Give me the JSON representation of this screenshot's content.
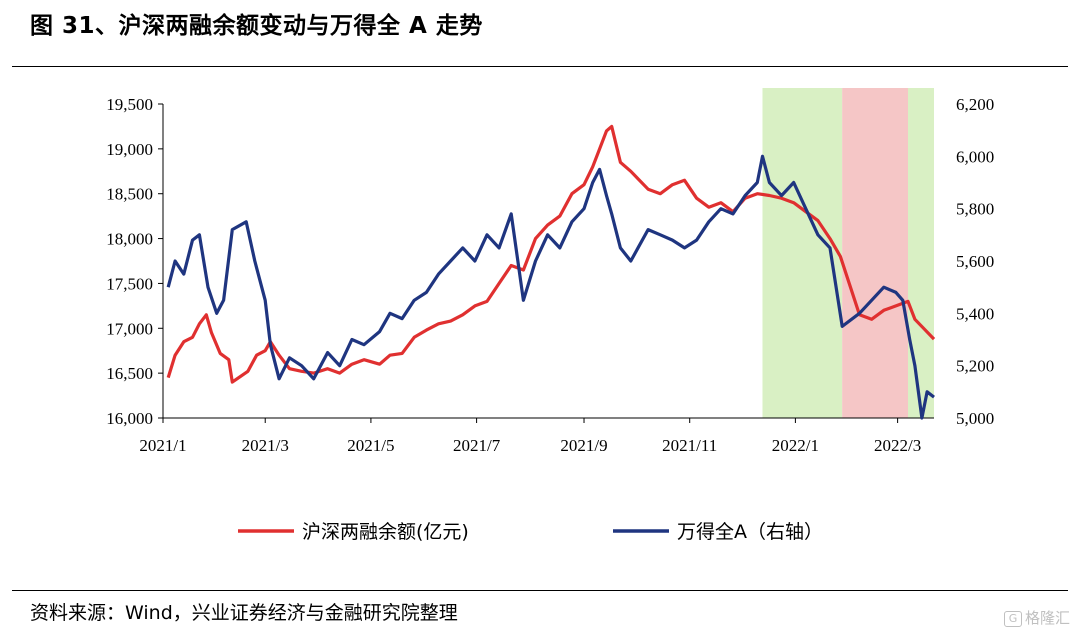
{
  "title": "图 31、沪深两融余额变动与万得全 A 走势",
  "source": "资料来源：Wind，兴业证券经济与金融研究院整理",
  "watermark": "格隆汇",
  "chart_data": {
    "type": "line",
    "title": "",
    "xlabel": "",
    "ylabel": "",
    "x_ticks": [
      "2021/1",
      "2021/3",
      "2021/5",
      "2021/7",
      "2021/9",
      "2021/11",
      "2022/1",
      "2022/3"
    ],
    "left_axis": {
      "ylim": [
        16000,
        19500
      ],
      "ticks": [
        "16,000",
        "16,500",
        "17,000",
        "17,500",
        "18,000",
        "18,500",
        "19,000",
        "19,500"
      ]
    },
    "right_axis": {
      "ylim": [
        5000,
        6200
      ],
      "ticks": [
        "5,000",
        "5,200",
        "5,400",
        "5,600",
        "5,800",
        "6,000",
        "6,200"
      ]
    },
    "grid": false,
    "legend_position": "bottom",
    "colors": {
      "margin": "#e03030",
      "index": "#1f3580",
      "green_band": "#d9f0c4",
      "red_band": "#f5c6c6"
    },
    "shaded_periods": [
      {
        "from": "2021/12/13",
        "to": "2022/1/28",
        "color": "green"
      },
      {
        "from": "2022/1/28",
        "to": "2022/3/7",
        "color": "red"
      },
      {
        "from": "2022/3/7",
        "to": "2022/3/22",
        "color": "green"
      }
    ],
    "series": [
      {
        "name": "沪深两融余额(亿元)",
        "axis": "left",
        "points": [
          [
            "2021/1/4",
            16450
          ],
          [
            "2021/1/8",
            16700
          ],
          [
            "2021/1/13",
            16850
          ],
          [
            "2021/1/18",
            16900
          ],
          [
            "2021/1/22",
            17050
          ],
          [
            "2021/1/26",
            17150
          ],
          [
            "2021/1/29",
            16950
          ],
          [
            "2021/2/3",
            16720
          ],
          [
            "2021/2/8",
            16650
          ],
          [
            "2021/2/10",
            16400
          ],
          [
            "2021/2/19",
            16520
          ],
          [
            "2021/2/24",
            16700
          ],
          [
            "2021/3/1",
            16750
          ],
          [
            "2021/3/4",
            16850
          ],
          [
            "2021/3/9",
            16700
          ],
          [
            "2021/3/15",
            16550
          ],
          [
            "2021/3/22",
            16520
          ],
          [
            "2021/3/29",
            16500
          ],
          [
            "2021/4/6",
            16550
          ],
          [
            "2021/4/13",
            16500
          ],
          [
            "2021/4/20",
            16600
          ],
          [
            "2021/4/27",
            16650
          ],
          [
            "2021/5/6",
            16600
          ],
          [
            "2021/5/12",
            16700
          ],
          [
            "2021/5/19",
            16720
          ],
          [
            "2021/5/26",
            16900
          ],
          [
            "2021/6/2",
            16980
          ],
          [
            "2021/6/9",
            17050
          ],
          [
            "2021/6/16",
            17080
          ],
          [
            "2021/6/23",
            17150
          ],
          [
            "2021/6/30",
            17250
          ],
          [
            "2021/7/7",
            17300
          ],
          [
            "2021/7/14",
            17500
          ],
          [
            "2021/7/21",
            17700
          ],
          [
            "2021/7/28",
            17650
          ],
          [
            "2021/8/4",
            18000
          ],
          [
            "2021/8/11",
            18150
          ],
          [
            "2021/8/18",
            18250
          ],
          [
            "2021/8/25",
            18500
          ],
          [
            "2021/9/1",
            18600
          ],
          [
            "2021/9/6",
            18800
          ],
          [
            "2021/9/10",
            19000
          ],
          [
            "2021/9/14",
            19200
          ],
          [
            "2021/9/17",
            19250
          ],
          [
            "2021/9/22",
            18850
          ],
          [
            "2021/9/28",
            18750
          ],
          [
            "2021/10/8",
            18550
          ],
          [
            "2021/10/15",
            18500
          ],
          [
            "2021/10/22",
            18600
          ],
          [
            "2021/10/29",
            18650
          ],
          [
            "2021/11/5",
            18450
          ],
          [
            "2021/11/12",
            18350
          ],
          [
            "2021/11/19",
            18400
          ],
          [
            "2021/11/26",
            18300
          ],
          [
            "2021/12/3",
            18450
          ],
          [
            "2021/12/10",
            18500
          ],
          [
            "2021/12/17",
            18480
          ],
          [
            "2021/12/24",
            18450
          ],
          [
            "2021/12/31",
            18400
          ],
          [
            "2022/1/7",
            18300
          ],
          [
            "2022/1/14",
            18200
          ],
          [
            "2022/1/21",
            18000
          ],
          [
            "2022/1/27",
            17800
          ],
          [
            "2022/2/7",
            17150
          ],
          [
            "2022/2/14",
            17100
          ],
          [
            "2022/2/21",
            17200
          ],
          [
            "2022/2/28",
            17250
          ],
          [
            "2022/3/7",
            17300
          ],
          [
            "2022/3/11",
            17100
          ],
          [
            "2022/3/16",
            17000
          ],
          [
            "2022/3/22",
            16880
          ]
        ]
      },
      {
        "name": "万得全A（右轴）",
        "axis": "right",
        "points": [
          [
            "2021/1/4",
            5500
          ],
          [
            "2021/1/8",
            5600
          ],
          [
            "2021/1/13",
            5550
          ],
          [
            "2021/1/18",
            5680
          ],
          [
            "2021/1/22",
            5700
          ],
          [
            "2021/1/27",
            5500
          ],
          [
            "2021/2/1",
            5400
          ],
          [
            "2021/2/5",
            5450
          ],
          [
            "2021/2/10",
            5720
          ],
          [
            "2021/2/18",
            5750
          ],
          [
            "2021/2/23",
            5600
          ],
          [
            "2021/3/1",
            5450
          ],
          [
            "2021/3/4",
            5280
          ],
          [
            "2021/3/9",
            5150
          ],
          [
            "2021/3/15",
            5230
          ],
          [
            "2021/3/22",
            5200
          ],
          [
            "2021/3/29",
            5150
          ],
          [
            "2021/4/6",
            5250
          ],
          [
            "2021/4/13",
            5200
          ],
          [
            "2021/4/20",
            5300
          ],
          [
            "2021/4/27",
            5280
          ],
          [
            "2021/5/6",
            5330
          ],
          [
            "2021/5/12",
            5400
          ],
          [
            "2021/5/19",
            5380
          ],
          [
            "2021/5/26",
            5450
          ],
          [
            "2021/6/2",
            5480
          ],
          [
            "2021/6/9",
            5550
          ],
          [
            "2021/6/16",
            5600
          ],
          [
            "2021/6/23",
            5650
          ],
          [
            "2021/6/30",
            5600
          ],
          [
            "2021/7/7",
            5700
          ],
          [
            "2021/7/14",
            5650
          ],
          [
            "2021/7/21",
            5780
          ],
          [
            "2021/7/28",
            5450
          ],
          [
            "2021/8/4",
            5600
          ],
          [
            "2021/8/11",
            5700
          ],
          [
            "2021/8/18",
            5650
          ],
          [
            "2021/8/25",
            5750
          ],
          [
            "2021/9/1",
            5800
          ],
          [
            "2021/9/6",
            5900
          ],
          [
            "2021/9/10",
            5950
          ],
          [
            "2021/9/14",
            5850
          ],
          [
            "2021/9/17",
            5780
          ],
          [
            "2021/9/22",
            5650
          ],
          [
            "2021/9/28",
            5600
          ],
          [
            "2021/10/8",
            5720
          ],
          [
            "2021/10/15",
            5700
          ],
          [
            "2021/10/22",
            5680
          ],
          [
            "2021/10/29",
            5650
          ],
          [
            "2021/11/5",
            5680
          ],
          [
            "2021/11/12",
            5750
          ],
          [
            "2021/11/19",
            5800
          ],
          [
            "2021/11/26",
            5780
          ],
          [
            "2021/12/3",
            5850
          ],
          [
            "2021/12/10",
            5900
          ],
          [
            "2021/12/13",
            6000
          ],
          [
            "2021/12/17",
            5900
          ],
          [
            "2021/12/24",
            5850
          ],
          [
            "2021/12/31",
            5900
          ],
          [
            "2022/1/7",
            5800
          ],
          [
            "2022/1/14",
            5700
          ],
          [
            "2022/1/21",
            5650
          ],
          [
            "2022/1/28",
            5350
          ],
          [
            "2022/2/7",
            5400
          ],
          [
            "2022/2/14",
            5450
          ],
          [
            "2022/2/21",
            5500
          ],
          [
            "2022/2/28",
            5480
          ],
          [
            "2022/3/4",
            5450
          ],
          [
            "2022/3/8",
            5300
          ],
          [
            "2022/3/11",
            5200
          ],
          [
            "2022/3/15",
            5000
          ],
          [
            "2022/3/18",
            5100
          ],
          [
            "2022/3/22",
            5080
          ]
        ]
      }
    ]
  }
}
